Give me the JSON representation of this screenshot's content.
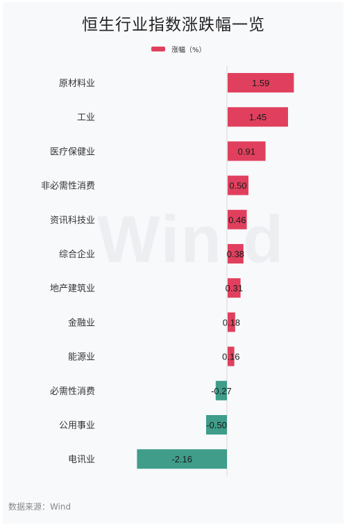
{
  "chart_data": {
    "type": "bar",
    "orientation": "horizontal",
    "title": "恒生行业指数涨跌幅一览",
    "categories": [
      "原材料业",
      "工业",
      "医疗保健业",
      "非必需性消费",
      "资讯科技业",
      "综合企业",
      "地产建筑业",
      "金融业",
      "能源业",
      "必需性消费",
      "公用事业",
      "电讯业"
    ],
    "series": [
      {
        "name": "涨幅（%）",
        "values": [
          1.59,
          1.45,
          0.91,
          0.5,
          0.46,
          0.38,
          0.31,
          0.18,
          0.16,
          -0.27,
          -0.5,
          -2.16
        ]
      }
    ],
    "value_labels": [
      "1.59",
      "1.45",
      "0.91",
      "0.50",
      "0.46",
      "0.38",
      "0.31",
      "0.18",
      "0.16",
      "-0.27",
      "-0.50",
      "-2.16"
    ],
    "legend_position": "top-center",
    "grid": false,
    "colors": {
      "positive": "#e0405e",
      "negative": "#3f9d8a",
      "zero_line": "#d8d8d8"
    }
  },
  "watermark": "Win.d",
  "source": "数据来源：Wind"
}
